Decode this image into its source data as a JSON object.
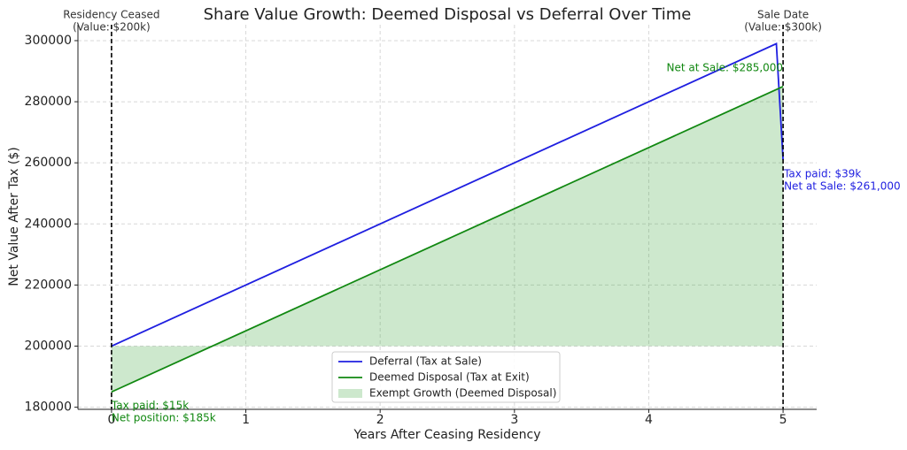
{
  "chart_data": {
    "type": "line",
    "title": "Share Value Growth: Deemed Disposal vs Deferral Over Time",
    "xlabel": "Years After Ceasing Residency",
    "ylabel": "Net Value After Tax ($)",
    "series": [
      {
        "name": "Deferral (Tax at Sale)",
        "color": "#1f1fe0",
        "x": [
          0,
          4.95,
          5
        ],
        "values": [
          200000,
          299000,
          261000
        ]
      },
      {
        "name": "Deemed Disposal (Tax at Exit)",
        "color": "#118811",
        "x": [
          0,
          5
        ],
        "values": [
          185000,
          285000
        ]
      },
      {
        "name": "Exempt Growth (Deemed Disposal)",
        "color": "#2ca02c",
        "kind": "fill",
        "x": [
          0,
          5
        ],
        "values": [
          185000,
          285000
        ],
        "baseline": 200000
      }
    ],
    "vlines": [
      0,
      5
    ],
    "annotations": [
      {
        "lines": [
          "Residency Ceased",
          "(Value: $200k)"
        ],
        "color": "#333333"
      },
      {
        "lines": [
          "Sale Date",
          "(Value: $300k)"
        ],
        "color": "#333333"
      },
      {
        "lines": [
          "Net at Sale: $285,000"
        ],
        "color": "#118811"
      },
      {
        "lines": [
          "Tax paid: $39k",
          "Net at Sale: $261,000"
        ],
        "color": "#1f1fe0"
      },
      {
        "lines": [
          "Tax paid: $15k",
          "Net position: $185k"
        ],
        "color": "#118811"
      }
    ],
    "xlim": [
      -0.25,
      5.25
    ],
    "xticks": [
      0,
      1,
      2,
      3,
      4,
      5
    ],
    "ylim": [
      179300,
      305200
    ],
    "yticks": [
      180000,
      200000,
      220000,
      240000,
      260000,
      280000,
      300000
    ],
    "grid": true,
    "legend": "lower center"
  }
}
